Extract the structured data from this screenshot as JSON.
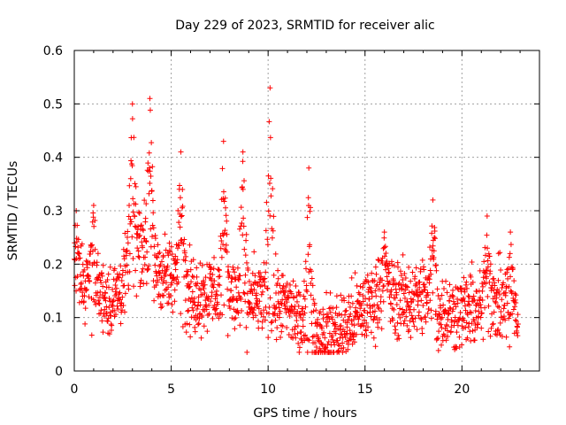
{
  "chart_data": {
    "type": "scatter",
    "title": "Day 229 of 2023, SRMTID for receiver alic",
    "xlabel": "GPS time / hours",
    "ylabel": "SRMTID / TECUs",
    "xlim": [
      0,
      24
    ],
    "ylim": [
      0,
      0.6
    ],
    "x_ticks": [
      0,
      5,
      10,
      15,
      20
    ],
    "y_ticks": [
      0,
      0.1,
      0.2,
      0.3,
      0.4,
      0.5,
      0.6
    ],
    "x_tick_labels": [
      "0",
      "5",
      "10",
      "15",
      "20"
    ],
    "y_tick_labels": [
      "0",
      "0.1",
      "0.2",
      "0.3",
      "0.4",
      "0.5",
      "0.6"
    ],
    "grid": true,
    "marker": "+",
    "series": [
      {
        "name": "alic",
        "color": "#ff0000",
        "x_range": [
          0,
          22.9
        ],
        "typical_baseline": [
          [
            0.0,
            0.17
          ],
          [
            1.0,
            0.16
          ],
          [
            2.0,
            0.13
          ],
          [
            3.0,
            0.2
          ],
          [
            3.5,
            0.25
          ],
          [
            4.0,
            0.2
          ],
          [
            5.0,
            0.17
          ],
          [
            6.0,
            0.14
          ],
          [
            7.0,
            0.15
          ],
          [
            8.0,
            0.14
          ],
          [
            9.0,
            0.13
          ],
          [
            10.0,
            0.14
          ],
          [
            11.0,
            0.12
          ],
          [
            12.0,
            0.08
          ],
          [
            13.0,
            0.07
          ],
          [
            14.0,
            0.08
          ],
          [
            15.0,
            0.12
          ],
          [
            16.0,
            0.15
          ],
          [
            17.0,
            0.13
          ],
          [
            18.0,
            0.14
          ],
          [
            19.0,
            0.11
          ],
          [
            20.0,
            0.11
          ],
          [
            21.0,
            0.12
          ],
          [
            22.0,
            0.13
          ],
          [
            22.9,
            0.09
          ]
        ],
        "peaks": [
          [
            0.1,
            0.3
          ],
          [
            1.0,
            0.31
          ],
          [
            3.0,
            0.5
          ],
          [
            3.9,
            0.51
          ],
          [
            5.5,
            0.41
          ],
          [
            7.7,
            0.43
          ],
          [
            8.7,
            0.41
          ],
          [
            10.1,
            0.53
          ],
          [
            12.1,
            0.38
          ],
          [
            16.0,
            0.26
          ],
          [
            18.5,
            0.32
          ],
          [
            21.3,
            0.29
          ],
          [
            22.5,
            0.26
          ]
        ]
      }
    ]
  },
  "colors": {
    "series": "#ff0000",
    "grid": "#a0a0a0",
    "axis": "#000000"
  }
}
